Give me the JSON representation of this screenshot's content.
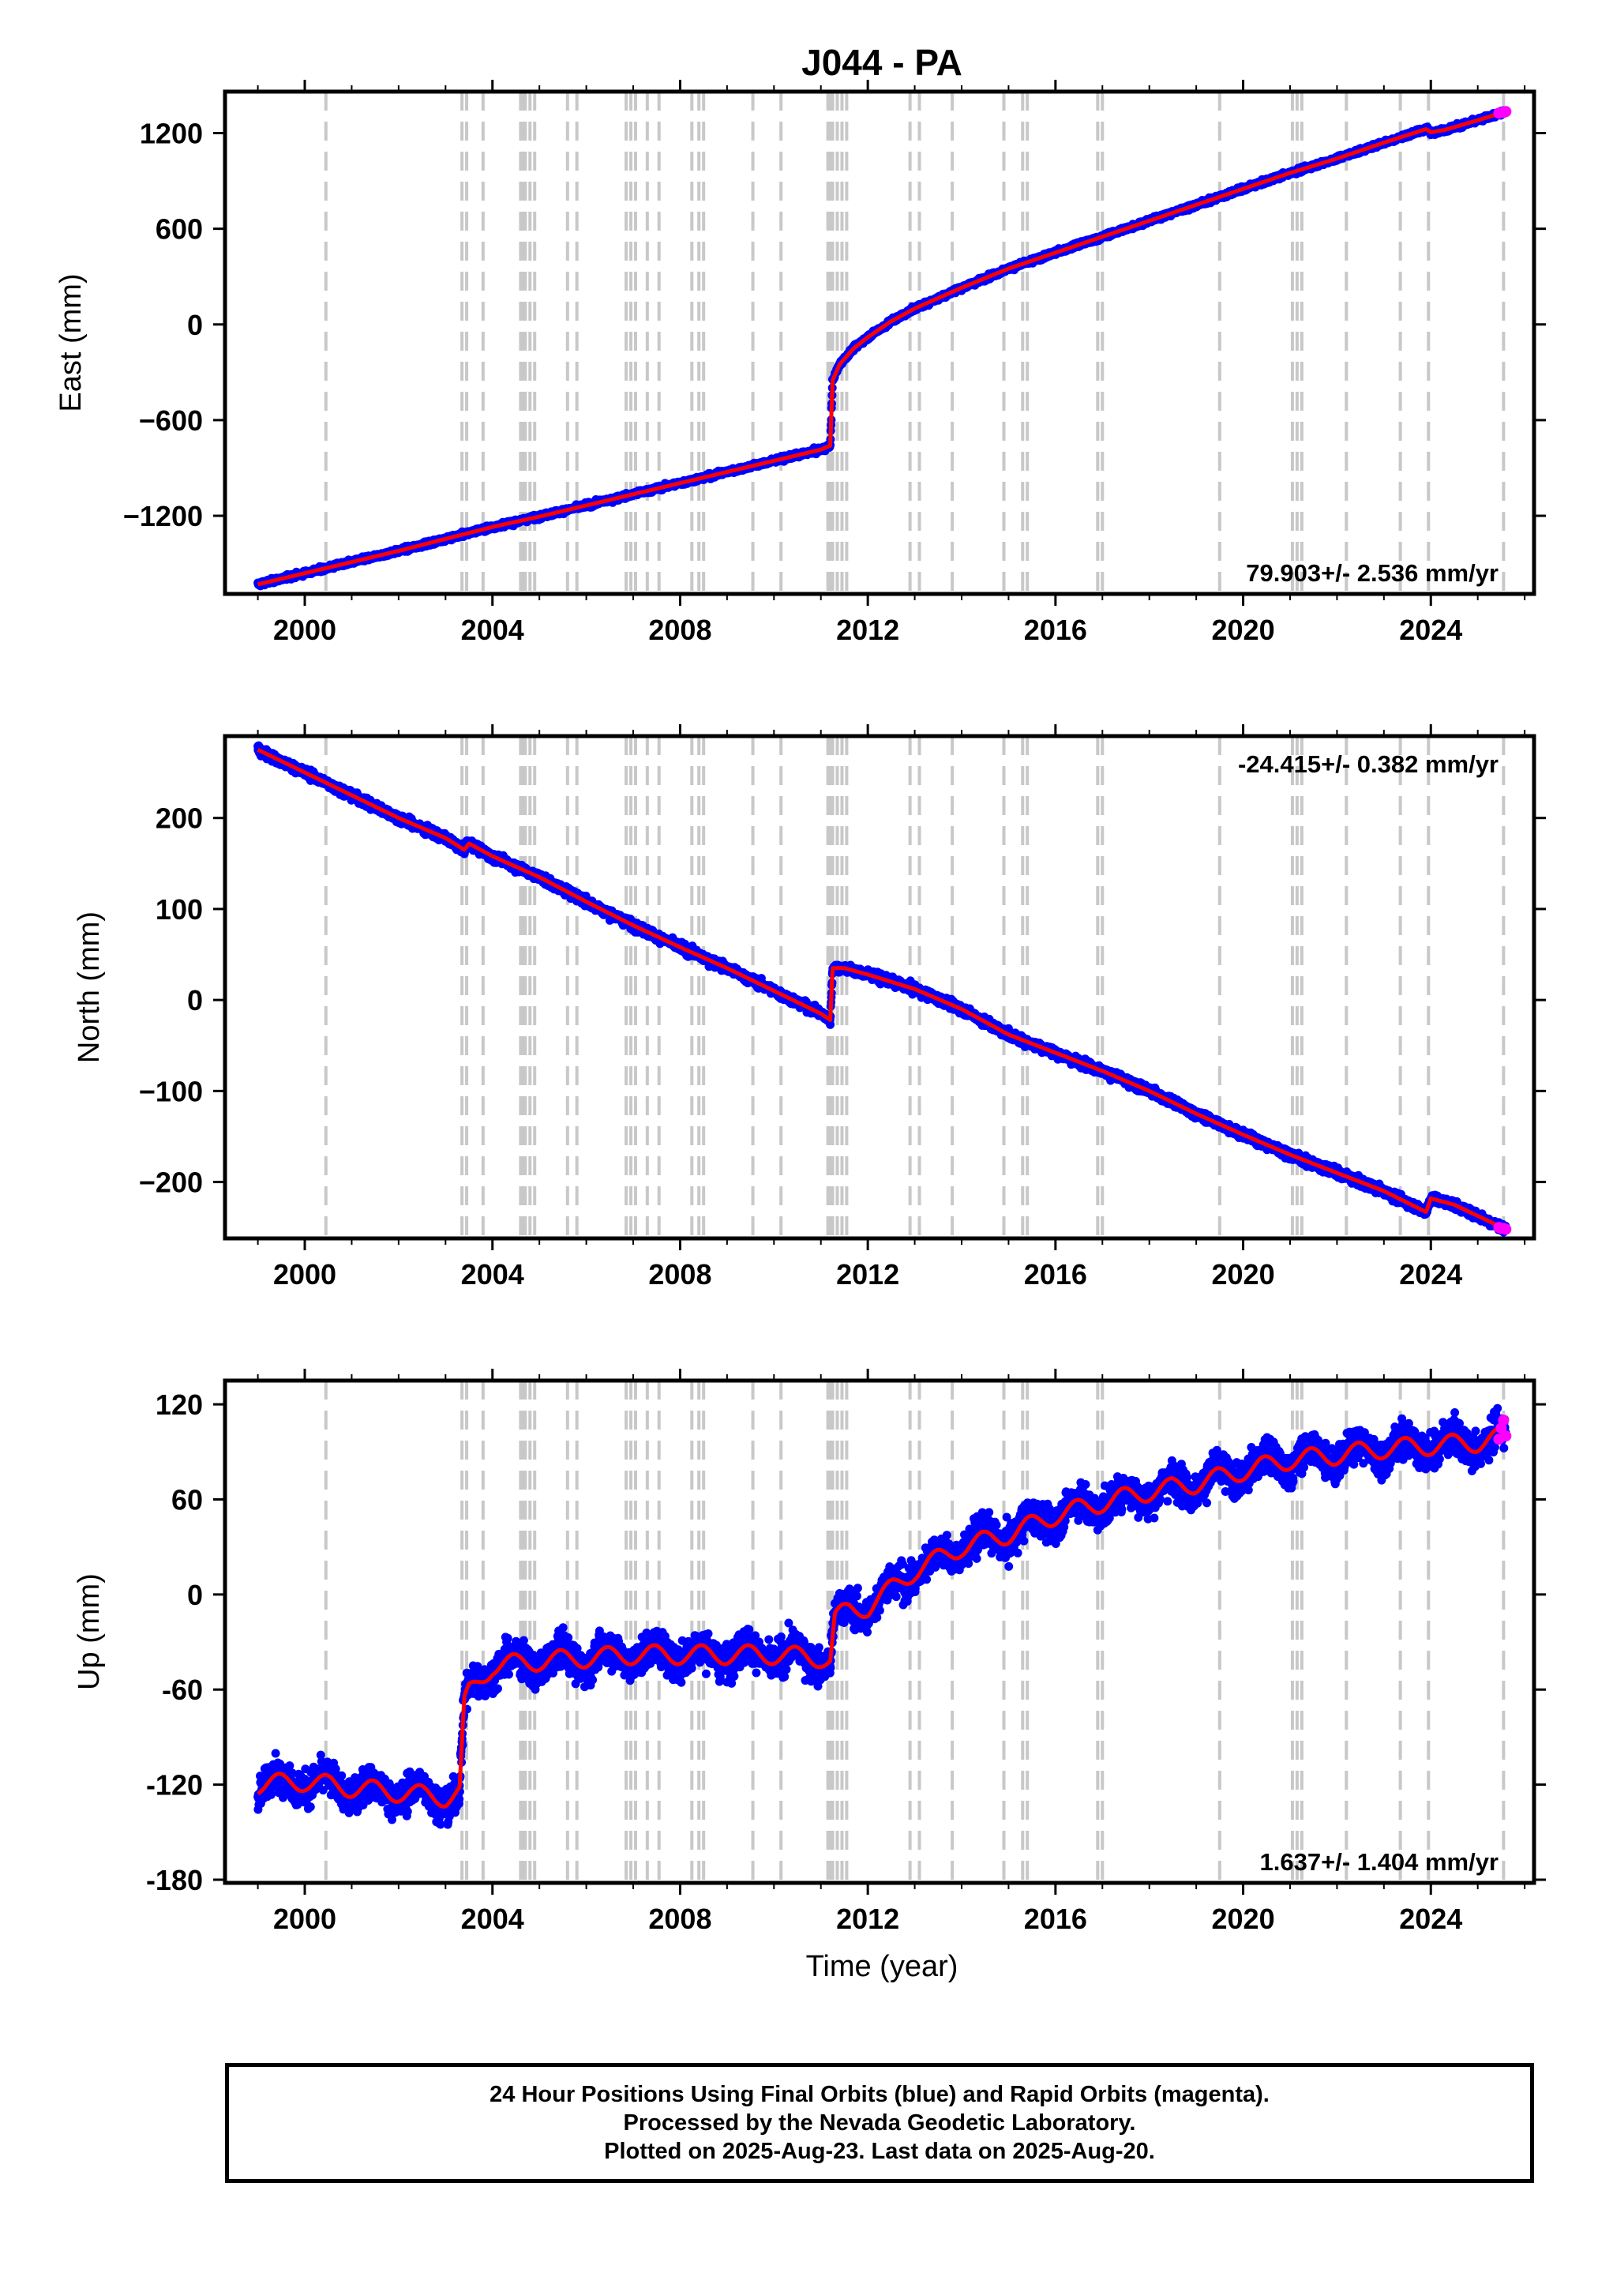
{
  "chart_data": {
    "type": "scatter",
    "title": "J044 - PA",
    "xlabel": "Time (year)",
    "xlim": [
      1998.3,
      2026.2
    ],
    "x_ticks": [
      2000,
      2004,
      2008,
      2012,
      2016,
      2020,
      2024
    ],
    "x_tick_labels": [
      "2000",
      "2004",
      "2008",
      "2012",
      "2016",
      "2020",
      "2024"
    ],
    "colors": {
      "final_orbits": "#0000ff",
      "rapid_orbits": "#ff00ff",
      "model": "#ff0000",
      "event_lines": "#c8c8c8"
    },
    "event_lines_x": [
      2000.45,
      2003.35,
      2003.45,
      2003.8,
      2004.6,
      2004.65,
      2004.7,
      2004.8,
      2004.9,
      2005.6,
      2005.8,
      2006.85,
      2006.95,
      2007.05,
      2007.3,
      2007.55,
      2008.25,
      2008.4,
      2008.5,
      2009.55,
      2010.15,
      2011.15,
      2011.2,
      2011.25,
      2011.35,
      2011.45,
      2011.55,
      2012.9,
      2013.1,
      2013.8,
      2014.9,
      2015.3,
      2015.4,
      2016.9,
      2017.0,
      2019.5,
      2021.05,
      2021.15,
      2021.25,
      2022.2,
      2023.35,
      2023.95,
      2025.55
    ],
    "panels": [
      {
        "ylabel": "East (mm)",
        "ylim": [
          -1690,
          1460
        ],
        "y_ticks": [
          1200,
          600,
          0,
          -600,
          -1200
        ],
        "y_tick_labels": [
          "1200",
          "600",
          "0",
          "−600",
          "−1200"
        ],
        "rate_label": "79.903+/- 2.536 mm/yr",
        "rate_position": "bottom-right",
        "series": [
          {
            "name": "Final Orbits",
            "x": [
              1999.0,
              2000.0,
              2001.0,
              2002.0,
              2003.0,
              2004.0,
              2005.0,
              2006.0,
              2007.0,
              2008.0,
              2009.0,
              2010.0,
              2011.0,
              2011.2,
              2011.25,
              2011.4,
              2011.7,
              2012.0,
              2012.5,
              2013.0,
              2014.0,
              2015.0,
              2016.0,
              2017.0,
              2018.0,
              2019.0,
              2020.0,
              2021.0,
              2022.0,
              2023.0,
              2023.9,
              2024.0,
              2024.3,
              2025.0,
              2025.6
            ],
            "y": [
              -1630,
              -1560,
              -1490,
              -1420,
              -1345,
              -1270,
              -1205,
              -1135,
              -1065,
              -995,
              -925,
              -855,
              -785,
              -760,
              -350,
              -250,
              -150,
              -80,
              20,
              100,
              230,
              350,
              450,
              550,
              650,
              750,
              850,
              950,
              1040,
              1140,
              1225,
              1205,
              1220,
              1280,
              1335
            ],
            "scatter_mm": 12
          },
          {
            "name": "Rapid Orbits",
            "x": [
              2025.45,
              2025.5,
              2025.55,
              2025.6
            ],
            "y": [
              1325,
              1328,
              1331,
              1335
            ]
          }
        ]
      },
      {
        "ylabel": "North (mm)",
        "ylim": [
          -262,
          290
        ],
        "y_ticks": [
          200,
          100,
          0,
          -100,
          -200
        ],
        "y_tick_labels": [
          "200",
          "100",
          "0",
          "−100",
          "−200"
        ],
        "rate_label": "-24.415+/- 0.382 mm/yr",
        "rate_position": "top-right",
        "series": [
          {
            "name": "Final Orbits",
            "x": [
              1999.0,
              2000.0,
              2001.0,
              2002.0,
              2003.0,
              2003.4,
              2003.5,
              2004.0,
              2005.0,
              2006.0,
              2007.0,
              2008.0,
              2009.0,
              2010.0,
              2011.0,
              2011.2,
              2011.25,
              2011.5,
              2012.0,
              2013.0,
              2014.0,
              2015.0,
              2016.0,
              2017.0,
              2018.0,
              2019.0,
              2020.0,
              2021.0,
              2022.0,
              2023.0,
              2023.9,
              2024.0,
              2024.5,
              2025.6
            ],
            "y": [
              275,
              250,
              225,
              200,
              178,
              165,
              172,
              158,
              135,
              108,
              82,
              58,
              35,
              10,
              -15,
              -22,
              35,
              35,
              28,
              12,
              -10,
              -38,
              -58,
              -78,
              -100,
              -125,
              -148,
              -170,
              -190,
              -210,
              -233,
              -218,
              -225,
              -252
            ],
            "scatter_mm": 4
          },
          {
            "name": "Rapid Orbits",
            "x": [
              2025.45,
              2025.5,
              2025.55,
              2025.6
            ],
            "y": [
              -250,
              -251,
              -251,
              -252
            ]
          }
        ]
      },
      {
        "ylabel": "Up (mm)",
        "ylim": [
          -182,
          135
        ],
        "y_ticks": [
          120,
          60,
          0,
          -60,
          -120,
          -180
        ],
        "y_tick_labels": [
          "120",
          "60",
          "0",
          "-60",
          "-120",
          "-180"
        ],
        "rate_label": "1.637+/- 1.404 mm/yr",
        "rate_position": "bottom-right",
        "series": [
          {
            "name": "Final Orbits",
            "x": [
              1999.0,
              2000.0,
              2001.0,
              2002.0,
              2003.0,
              2003.3,
              2003.4,
              2003.5,
              2004.0,
              2005.0,
              2006.0,
              2007.0,
              2008.0,
              2009.0,
              2010.0,
              2011.0,
              2011.2,
              2011.3,
              2011.6,
              2012.0,
              2013.0,
              2014.0,
              2015.0,
              2016.0,
              2017.0,
              2018.0,
              2019.0,
              2020.0,
              2021.0,
              2022.0,
              2023.0,
              2024.0,
              2025.0,
              2025.6
            ],
            "y": [
              -120,
              -118,
              -122,
              -125,
              -128,
              -125,
              -70,
              -62,
              -45,
              -42,
              -40,
              -38,
              -38,
              -38,
              -38,
              -40,
              -42,
              -15,
              -10,
              -8,
              15,
              30,
              38,
              50,
              58,
              65,
              70,
              78,
              85,
              88,
              92,
              94,
              96,
              100
            ],
            "scatter_mm": 9,
            "seasonal_amp_mm": 6
          },
          {
            "name": "Rapid Orbits",
            "x": [
              2025.45,
              2025.5,
              2025.55,
              2025.6
            ],
            "y": [
              98,
              105,
              110,
              100
            ]
          }
        ]
      }
    ],
    "caption": [
      "24 Hour Positions Using Final Orbits (blue) and Rapid Orbits (magenta).",
      "Processed by the Nevada Geodetic Laboratory.",
      "Plotted on 2025-Aug-23. Last data on 2025-Aug-20."
    ]
  }
}
